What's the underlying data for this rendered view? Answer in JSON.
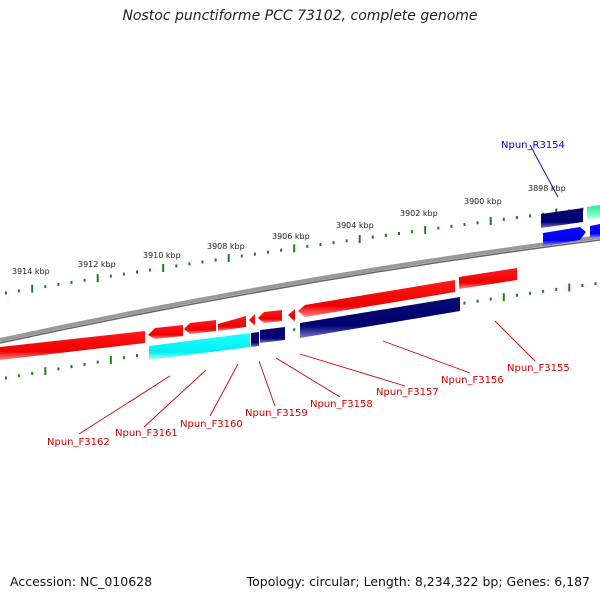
{
  "title": "Nostoc punctiforme PCC 73102, complete genome",
  "accession": "Accession: NC_010628",
  "summary": "Topology: circular; Length: 8,234,322 bp; Genes: 6,187",
  "colors": {
    "backbone": "#888888",
    "forward_gene": "#ff0000",
    "reverse_gene": "#000080",
    "rna_gene": "#0000ff",
    "cds_alt": "#00ffff",
    "other": "#33ee99",
    "tick": "#1a7f1a",
    "label_forward": "#cc0000",
    "label_rna": "#0000cc"
  },
  "scale_ticks": [
    {
      "label": "3914 kbp"
    },
    {
      "label": "3912 kbp"
    },
    {
      "label": "3910 kbp"
    },
    {
      "label": "3908 kbp"
    },
    {
      "label": "3906 kbp"
    },
    {
      "label": "3904 kbp"
    },
    {
      "label": "3902 kbp"
    },
    {
      "label": "3900 kbp"
    },
    {
      "label": "3898 kbp"
    }
  ],
  "gene_labels": [
    {
      "id": "Npun_R3154"
    },
    {
      "id": "Npun_F3155"
    },
    {
      "id": "Npun_F3156"
    },
    {
      "id": "Npun_F3157"
    },
    {
      "id": "Npun_F3158"
    },
    {
      "id": "Npun_F3159"
    },
    {
      "id": "Npun_F3160"
    },
    {
      "id": "Npun_F3161"
    },
    {
      "id": "Npun_F3162"
    }
  ]
}
